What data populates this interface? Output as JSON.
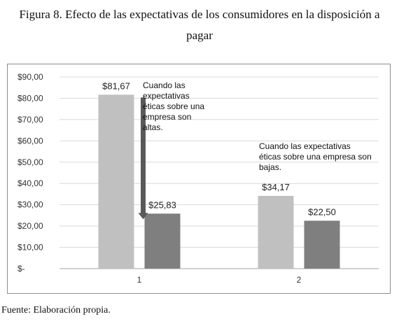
{
  "figure": {
    "title_line1": "Figura 8. Efecto de las expectativas de los consumidores en la disposición a",
    "title_line2": "pagar",
    "source": "Fuente: Elaboración propia."
  },
  "chart_data": {
    "type": "bar",
    "categories": [
      "1",
      "2"
    ],
    "series": [
      {
        "values": [
          81.67,
          34.17
        ],
        "labels": [
          "$81,67",
          "$34,17"
        ],
        "color": "#c0c0c0"
      },
      {
        "values": [
          25.83,
          22.5
        ],
        "labels": [
          "$25,83",
          "$22,50"
        ],
        "color": "#7f7f7f"
      }
    ],
    "ylim": [
      0,
      90
    ],
    "yticks": [
      0,
      10,
      20,
      30,
      40,
      50,
      60,
      70,
      80,
      90
    ],
    "ytick_labels": [
      "$-",
      "$10,00",
      "$20,00",
      "$30,00",
      "$40,00",
      "$50,00",
      "$60,00",
      "$70,00",
      "$80,00",
      "$90,00"
    ],
    "grid": true,
    "annotations": [
      {
        "lines": [
          "Cuando las",
          "expectativas",
          "éticas sobre una",
          "empresa son",
          "altas."
        ]
      },
      {
        "lines": [
          "Cuando las expectativas",
          "éticas sobre una empresa son",
          "bajas."
        ]
      }
    ],
    "arrow": {
      "from": 81.67,
      "to": 25.83,
      "color": "#595959"
    }
  }
}
